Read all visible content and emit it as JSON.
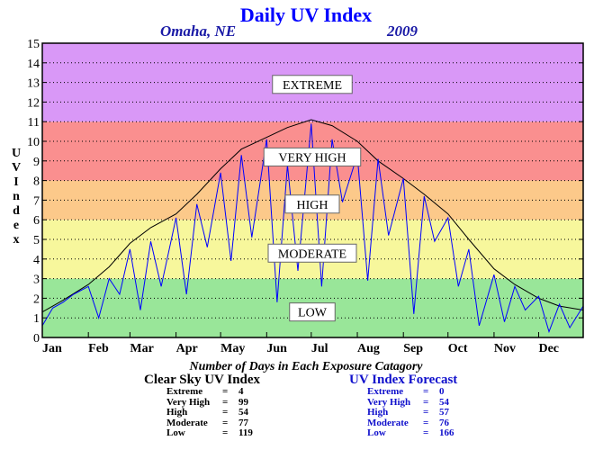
{
  "title": "Daily UV Index",
  "location": "Omaha, NE",
  "year": "2009",
  "ylabel": "UV Index",
  "caption": "Number of Days in Each Exposure Catagory",
  "clear_sky": {
    "title": "Clear Sky UV Index",
    "rows": [
      {
        "name": "Extreme",
        "eq": "=",
        "value": "4"
      },
      {
        "name": "Very High",
        "eq": "=",
        "value": "99"
      },
      {
        "name": "High",
        "eq": "=",
        "value": "54"
      },
      {
        "name": "Moderate",
        "eq": "=",
        "value": "77"
      },
      {
        "name": "Low",
        "eq": "=",
        "value": "119"
      }
    ]
  },
  "forecast": {
    "title": "UV Index Forecast",
    "rows": [
      {
        "name": "Extreme",
        "eq": "=",
        "value": "0"
      },
      {
        "name": "Very High",
        "eq": "=",
        "value": "54"
      },
      {
        "name": "High",
        "eq": "=",
        "value": "57"
      },
      {
        "name": "Moderate",
        "eq": "=",
        "value": "76"
      },
      {
        "name": "Low",
        "eq": "=",
        "value": "166"
      }
    ]
  },
  "chart_data": {
    "type": "line",
    "title": "Daily UV Index",
    "xlabel": "",
    "ylabel": "UV Index",
    "ylim": [
      0,
      15
    ],
    "yticks": [
      0,
      1,
      2,
      3,
      4,
      5,
      6,
      7,
      8,
      9,
      10,
      11,
      12,
      13,
      14,
      15
    ],
    "grid": true,
    "x_tick_labels": [
      "Jan",
      "Feb",
      "Mar",
      "Apr",
      "May",
      "Jun",
      "Jul",
      "Aug",
      "Sep",
      "Oct",
      "Nov",
      "Dec"
    ],
    "bands": [
      {
        "label": "LOW",
        "from": 0,
        "to": 3,
        "color": "#99e699"
      },
      {
        "label": "MODERATE",
        "from": 3,
        "to": 6,
        "color": "#f7f79c"
      },
      {
        "label": "HIGH",
        "from": 6,
        "to": 8,
        "color": "#fcc98a"
      },
      {
        "label": "VERY HIGH",
        "from": 8,
        "to": 11,
        "color": "#fa8f8f"
      },
      {
        "label": "EXTREME",
        "from": 11,
        "to": 15,
        "color": "#d998f7"
      }
    ],
    "band_label_values": {
      "EXTREME": 12.9,
      "VERY HIGH": 9.2,
      "HIGH": 6.8,
      "MODERATE": 4.3,
      "LOW": 1.3
    },
    "series": [
      {
        "color": "#000000",
        "x": [
          1,
          15,
          32,
          46,
          60,
          74,
          91,
          105,
          121,
          135,
          152,
          166,
          182,
          196,
          213,
          227,
          244,
          258,
          274,
          288,
          305,
          319,
          335,
          349,
          365
        ],
        "values": [
          1.3,
          1.9,
          2.7,
          3.6,
          4.8,
          5.6,
          6.3,
          7.3,
          8.6,
          9.6,
          10.2,
          10.7,
          11.1,
          10.8,
          10.0,
          9.0,
          8.1,
          7.3,
          6.3,
          5.0,
          3.5,
          2.7,
          2.0,
          1.6,
          1.4
        ]
      },
      {
        "color": "#0000ff",
        "x": [
          1,
          8,
          15,
          22,
          32,
          39,
          46,
          53,
          60,
          67,
          74,
          81,
          91,
          98,
          105,
          112,
          121,
          128,
          135,
          142,
          152,
          159,
          166,
          173,
          182,
          189,
          196,
          203,
          213,
          220,
          227,
          234,
          244,
          251,
          258,
          265,
          274,
          281,
          288,
          295,
          305,
          312,
          319,
          326,
          335,
          342,
          349,
          356,
          365
        ],
        "values": [
          0.6,
          1.5,
          1.8,
          2.2,
          2.6,
          1.0,
          3.0,
          2.2,
          4.5,
          1.4,
          4.9,
          2.6,
          6.1,
          2.2,
          6.8,
          4.6,
          8.4,
          3.9,
          9.3,
          5.1,
          10.1,
          1.8,
          8.8,
          3.4,
          10.9,
          2.6,
          10.1,
          6.9,
          9.3,
          2.9,
          9.1,
          5.2,
          8.1,
          1.2,
          7.2,
          4.9,
          6.1,
          2.6,
          4.5,
          0.6,
          3.2,
          0.8,
          2.6,
          1.4,
          2.1,
          0.3,
          1.7,
          0.5,
          1.6
        ]
      }
    ]
  }
}
